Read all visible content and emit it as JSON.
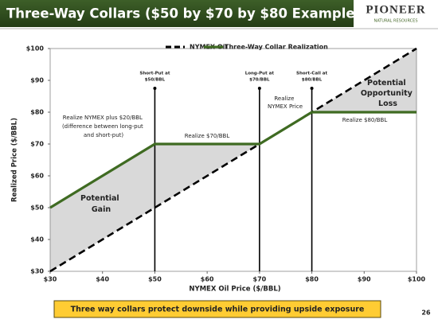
{
  "header": {
    "title": "Three-Way Collars ($50 by $70 by $80 Example)",
    "logo": "PIONEER",
    "logo_sub": "NATURAL RESOURCES"
  },
  "chart_data": {
    "type": "line",
    "xlabel": "NYMEX Oil Price ($/BBL)",
    "ylabel": "Realized Price ($/BBL)",
    "xlim": [
      30,
      100
    ],
    "ylim": [
      30,
      100
    ],
    "xticks": [
      {
        "value": 30,
        "label": "$30"
      },
      {
        "value": 40,
        "label": "$40"
      },
      {
        "value": 50,
        "label": "$50"
      },
      {
        "value": 60,
        "label": "$60"
      },
      {
        "value": 70,
        "label": "$70"
      },
      {
        "value": 80,
        "label": "$80"
      },
      {
        "value": 90,
        "label": "$90"
      },
      {
        "value": 100,
        "label": "$100"
      }
    ],
    "yticks": [
      {
        "value": 30,
        "label": "$30"
      },
      {
        "value": 40,
        "label": "$40"
      },
      {
        "value": 50,
        "label": "$50"
      },
      {
        "value": 60,
        "label": "$60"
      },
      {
        "value": 70,
        "label": "$70"
      },
      {
        "value": 80,
        "label": "$80"
      },
      {
        "value": 90,
        "label": "$90"
      },
      {
        "value": 100,
        "label": "$100"
      }
    ],
    "series": [
      {
        "name": "NYMEX Oil",
        "color": "#000000",
        "dash": true,
        "x": [
          30,
          100
        ],
        "values": [
          30,
          100
        ]
      },
      {
        "name": "Three-Way Collar Realization",
        "color": "#3f6b22",
        "dash": false,
        "x": [
          30,
          50,
          70,
          80,
          100
        ],
        "values": [
          50,
          70,
          70,
          80,
          80
        ]
      }
    ],
    "shade_color": "#d9d9d9",
    "vlines": [
      {
        "x": 50,
        "label": [
          "Short-Put at",
          "$50/BBL"
        ]
      },
      {
        "x": 70,
        "label": [
          "Long-Put at",
          "$70/BBL"
        ]
      },
      {
        "x": 80,
        "label": [
          "Short-Call at",
          "$80/BBL"
        ]
      }
    ],
    "annotations": [
      [
        "Realize NYMEX plus $20/BBL",
        "(difference between long-put",
        "and short-put)"
      ],
      [
        "Realize $70/BBL"
      ],
      [
        "Realize",
        "NYMEX Price"
      ],
      [
        "Realize $80/BBL"
      ],
      [
        "Potential",
        "Gain"
      ],
      [
        "Potential",
        "Opportunity",
        "Loss"
      ]
    ]
  },
  "footer": {
    "note": "Three way collars protect downside while providing upside exposure",
    "page": "26"
  }
}
